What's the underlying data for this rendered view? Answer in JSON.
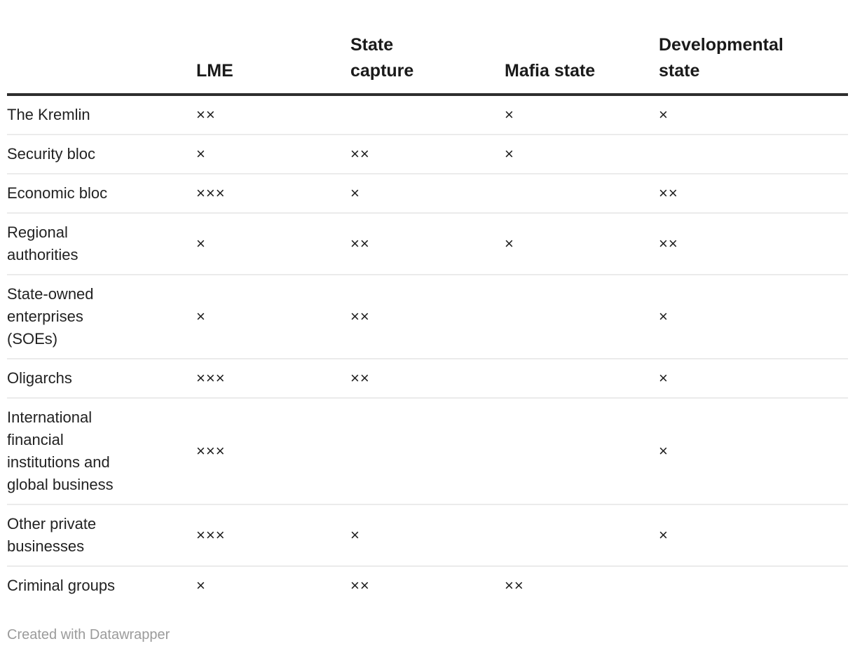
{
  "chart_data": {
    "type": "table",
    "columns": [
      "LME",
      "State capture",
      "Mafia state",
      "Developmental state"
    ],
    "rows": [
      "The Kremlin",
      "Security bloc",
      "Economic bloc",
      "Regional authorities",
      "State-owned enterprises (SOEs)",
      "Oligarchs",
      "International financial institutions and global business",
      "Other private businesses",
      "Criminal groups"
    ],
    "values": [
      [
        "××",
        "",
        "×",
        "×"
      ],
      [
        "×",
        "××",
        "×",
        ""
      ],
      [
        "×××",
        "×",
        "",
        "××"
      ],
      [
        "×",
        "××",
        "×",
        "××"
      ],
      [
        "×",
        "××",
        "",
        "×"
      ],
      [
        "×××",
        "××",
        "",
        "×"
      ],
      [
        "×××",
        "",
        "",
        "×"
      ],
      [
        "×××",
        "×",
        "",
        "×"
      ],
      [
        "×",
        "××",
        "××",
        ""
      ]
    ],
    "layout": {
      "grid": "horizontal-rules",
      "header_rule_color": "#2e2e2e",
      "row_rule_color": "#ebebeb"
    }
  },
  "footer": {
    "attribution": "Created with Datawrapper"
  },
  "colors": {
    "header_text": "#1a1a1a",
    "body_text": "#222222",
    "attribution_text": "#9b9b9b",
    "background": "#ffffff"
  }
}
